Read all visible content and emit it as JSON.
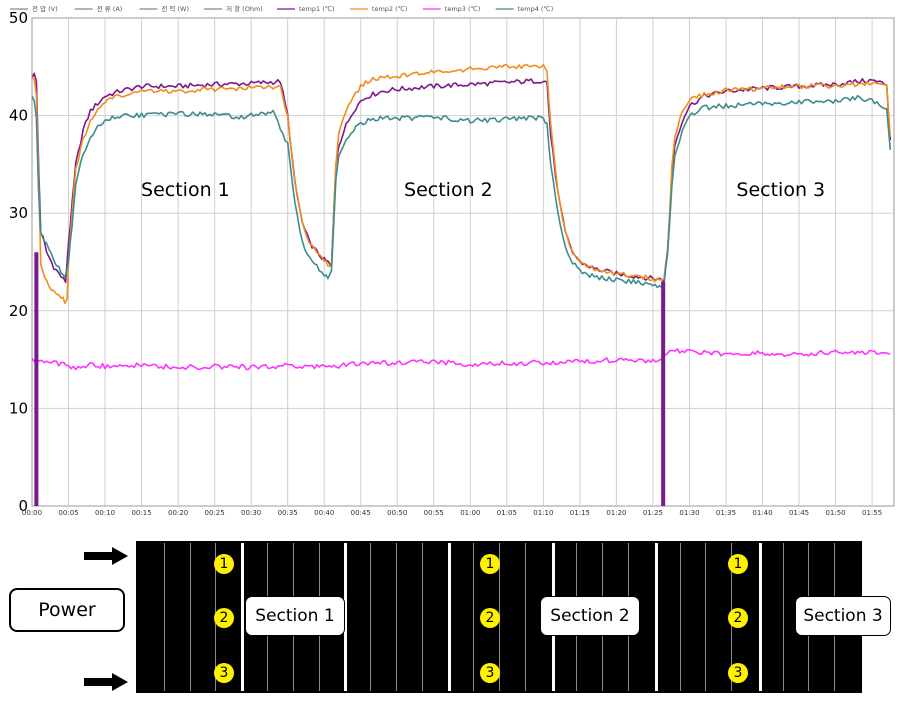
{
  "chart_data": {
    "type": "line",
    "title": "",
    "xlabel": "",
    "ylabel": "",
    "ylim": [
      0,
      50
    ],
    "yticks": [
      0,
      10,
      20,
      30,
      40,
      50
    ],
    "xlim": [
      0,
      118
    ],
    "x_tick_labels": [
      "00:00",
      "00:05",
      "00:10",
      "00:15",
      "00:20",
      "00:25",
      "00:30",
      "00:35",
      "00:40",
      "00:45",
      "00:50",
      "00:55",
      "01:00",
      "01:05",
      "01:10",
      "01:15",
      "01:20",
      "01:25",
      "01:30",
      "01:35",
      "01:40",
      "01:45",
      "01:50",
      "01:55"
    ],
    "x_tick_minutes": [
      0,
      5,
      10,
      15,
      20,
      25,
      30,
      35,
      40,
      45,
      50,
      55,
      60,
      65,
      70,
      75,
      80,
      85,
      90,
      95,
      100,
      105,
      110,
      115
    ],
    "grid": true,
    "legend_position": "top",
    "legend": [
      "전 압 (V)",
      "전 류 (A)",
      "전 력 (W)",
      "저 항 (Ohm)",
      "temp1 (℃)",
      "temp2 (℃)",
      "temp3 (℃)",
      "temp4 (℃)"
    ],
    "annotations": [
      {
        "text": "Section 1",
        "x": 21,
        "y": 32.5
      },
      {
        "text": "Section 2",
        "x": 57,
        "y": 32.5
      },
      {
        "text": "Section 3",
        "x": 102.5,
        "y": 32.5
      }
    ],
    "series": [
      {
        "name": "temp1 (℃)",
        "color": "#7b1a8f",
        "x": [
          0,
          0.3,
          0.6,
          0.9,
          1.2,
          1.5,
          2,
          3,
          4,
          4.3,
          4.6,
          5,
          5.5,
          6,
          7,
          8,
          10,
          12,
          15,
          20,
          25,
          30,
          34,
          35,
          36,
          37,
          38,
          39,
          40,
          40.5,
          41,
          41.3,
          41.6,
          42,
          43,
          44,
          45,
          46,
          48,
          50,
          55,
          60,
          65,
          70,
          70.5,
          71,
          72,
          73,
          74,
          75,
          77,
          80,
          83,
          85,
          86.5,
          87,
          87.3,
          87.6,
          88,
          89,
          90,
          92,
          95,
          100,
          105,
          110,
          113,
          115,
          116,
          117,
          117.5
        ],
        "values": [
          44,
          44.2,
          43.5,
          35,
          28,
          27.5,
          26,
          24.5,
          23.5,
          23.2,
          23,
          27,
          31,
          35,
          38.5,
          40.5,
          42,
          42.5,
          43,
          43,
          43.2,
          43.3,
          43.5,
          40,
          33,
          29,
          27,
          26,
          25.2,
          25,
          24.5,
          30,
          35,
          37,
          39,
          40.5,
          41.5,
          42,
          42.5,
          42.7,
          43,
          43.2,
          43.4,
          43.6,
          43.4,
          38,
          32,
          28,
          26,
          25,
          24.3,
          23.8,
          23.5,
          23.3,
          23.2,
          26,
          30,
          34,
          37,
          39.5,
          41,
          42,
          42.5,
          42.8,
          43,
          43.2,
          43.5,
          43.6,
          43.4,
          43.2,
          37.5
        ]
      },
      {
        "name": "temp2 (℃)",
        "color": "#f28c1c",
        "x": [
          0,
          0.3,
          0.6,
          0.9,
          1.2,
          1.5,
          2,
          3,
          4,
          4.5,
          4.8,
          5,
          5.5,
          6,
          7,
          8,
          10,
          12,
          15,
          20,
          25,
          30,
          34,
          35,
          36,
          37,
          38,
          39,
          40,
          40.5,
          41,
          41.3,
          41.6,
          42,
          43,
          44,
          45,
          46,
          48,
          50,
          55,
          60,
          65,
          70,
          70.5,
          71,
          72,
          73,
          74,
          75,
          77,
          80,
          83,
          85,
          86.5,
          87,
          87.3,
          87.6,
          88,
          89,
          90,
          92,
          95,
          100,
          105,
          110,
          113,
          115,
          116,
          117,
          117.5
        ],
        "values": [
          44,
          43.8,
          42,
          34,
          25,
          24,
          23,
          22,
          21.3,
          21,
          21.2,
          25,
          30,
          34.5,
          37.5,
          39.5,
          41.5,
          42,
          42.5,
          42.5,
          42.7,
          42.8,
          43,
          40,
          33,
          29,
          27,
          26,
          25,
          24.8,
          24.5,
          30,
          35,
          38,
          40.5,
          42,
          43,
          43.5,
          44,
          44,
          44.5,
          44.8,
          45,
          45,
          44.6,
          39,
          32,
          28,
          26,
          25,
          24.3,
          23.8,
          23.5,
          23.3,
          23,
          26,
          30,
          35,
          38,
          40.5,
          41.5,
          42.2,
          42.6,
          42.8,
          43,
          43,
          43.2,
          43.3,
          43.3,
          43,
          37.8
        ]
      },
      {
        "name": "temp3 (℃)",
        "color": "#ff33ff",
        "x": [
          0,
          2,
          4,
          6,
          8,
          10,
          15,
          20,
          25,
          30,
          35,
          40,
          45,
          50,
          55,
          60,
          65,
          70,
          75,
          80,
          85,
          86.4,
          86.6,
          88,
          90,
          95,
          100,
          105,
          110,
          115,
          117.5
        ],
        "values": [
          15,
          14.8,
          14.5,
          14.2,
          14.5,
          14.3,
          14.4,
          14.2,
          14.3,
          14.2,
          14.4,
          14.2,
          14.6,
          14.7,
          14.8,
          14.5,
          14.6,
          14.7,
          14.8,
          15,
          14.8,
          14.8,
          15.6,
          15.9,
          15.8,
          15.6,
          15.7,
          15.5,
          15.8,
          15.7,
          15.6
        ]
      },
      {
        "name": "temp4 (℃)",
        "color": "#3f8c8c",
        "x": [
          0,
          0.3,
          0.6,
          0.9,
          1.2,
          1.5,
          2,
          3,
          4,
          4.5,
          5,
          5.5,
          6,
          7,
          8,
          10,
          12,
          15,
          20,
          25,
          28,
          30,
          33,
          35,
          36,
          37,
          38,
          39,
          40,
          40.5,
          41,
          41.3,
          41.6,
          42,
          43,
          44,
          45,
          46,
          48,
          50,
          55,
          60,
          65,
          70,
          70.5,
          71,
          72,
          73,
          74,
          75,
          77,
          80,
          83,
          85,
          86.5,
          87,
          87.3,
          87.6,
          88,
          89,
          90,
          92,
          95,
          100,
          105,
          110,
          113,
          115,
          116,
          117,
          117.5
        ],
        "values": [
          41.8,
          41.5,
          40,
          32,
          28,
          27.5,
          27,
          25,
          24,
          23.5,
          25,
          29,
          33,
          36,
          38,
          39.5,
          40,
          40,
          40.2,
          40.1,
          39.8,
          40,
          40.3,
          37,
          31,
          27,
          25.5,
          24.5,
          23.8,
          23.5,
          24,
          29,
          33.5,
          36,
          37.5,
          38.5,
          39.2,
          39.5,
          39.8,
          39.7,
          39.8,
          39.5,
          39.6,
          39.8,
          39.2,
          35,
          30,
          26.5,
          25,
          24,
          23.5,
          23.2,
          22.9,
          22.6,
          22.5,
          26,
          29,
          33,
          36,
          38.5,
          40,
          40.8,
          41,
          41.2,
          41.4,
          41.5,
          41.8,
          41.6,
          41.2,
          40.5,
          36.5
        ]
      }
    ],
    "spikes": [
      {
        "color": "#7b1a8f",
        "x": 0.6,
        "from": 26,
        "to": 0
      },
      {
        "color": "#7b1a8f",
        "x": 86.4,
        "from": 23,
        "to": 0
      }
    ]
  },
  "diagram": {
    "power_label": "Power",
    "markers": [
      "1",
      "2",
      "3"
    ],
    "sections": [
      "Section 1",
      "Section 2",
      "Section 3"
    ]
  }
}
